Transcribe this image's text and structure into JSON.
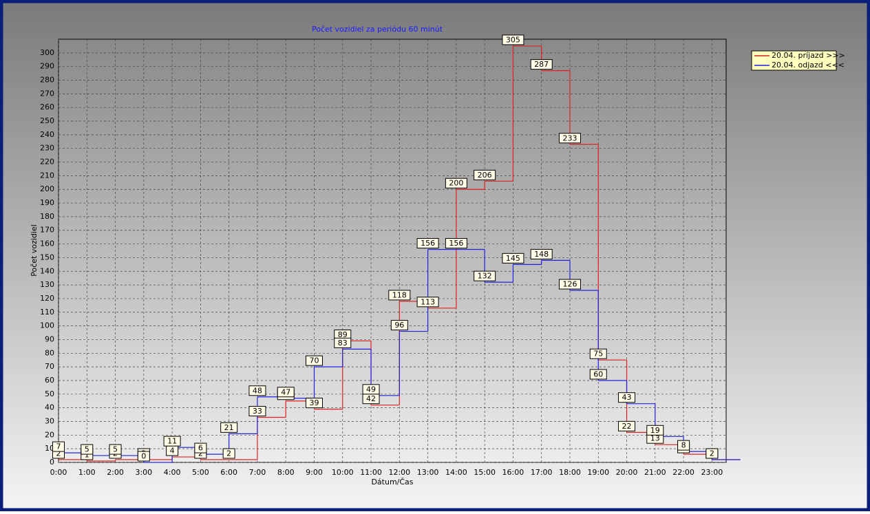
{
  "chart_data": {
    "type": "step-line",
    "title": "Počet vozidiel za periódu 60 minút",
    "x_label": "Dátum/Čas",
    "y_label": "Počet vozidiel",
    "categories": [
      "0:00",
      "1:00",
      "2:00",
      "3:00",
      "4:00",
      "5:00",
      "6:00",
      "7:00",
      "8:00",
      "9:00",
      "10:00",
      "11:00",
      "12:00",
      "13:00",
      "14:00",
      "15:00",
      "16:00",
      "17:00",
      "18:00",
      "19:00",
      "20:00",
      "21:00",
      "22:00",
      "23:00"
    ],
    "series": [
      {
        "name": "20.04.  príjazd >>>",
        "color": "#e02020",
        "values": [
          2,
          1,
          2,
          2,
          4,
          2,
          2,
          33,
          45,
          39,
          89,
          42,
          118,
          113,
          200,
          206,
          305,
          287,
          233,
          75,
          22,
          13,
          6,
          2
        ]
      },
      {
        "name": "20.04.  odjazd <<<",
        "color": "#2020e0",
        "values": [
          7,
          5,
          5,
          0,
          11,
          6,
          21,
          48,
          47,
          70,
          83,
          49,
          96,
          156,
          156,
          132,
          145,
          148,
          126,
          60,
          43,
          19,
          8,
          2
        ]
      }
    ],
    "ylim": [
      0,
      310
    ],
    "yticks": [
      0,
      10,
      20,
      30,
      40,
      50,
      60,
      70,
      80,
      90,
      100,
      110,
      120,
      130,
      140,
      150,
      160,
      170,
      180,
      190,
      200,
      210,
      220,
      230,
      240,
      250,
      260,
      270,
      280,
      290,
      300
    ],
    "grid": true
  }
}
